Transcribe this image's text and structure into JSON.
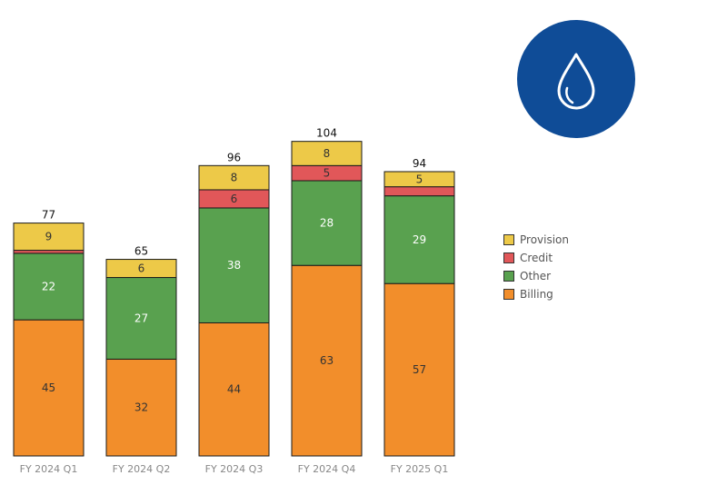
{
  "chart_data": {
    "type": "bar",
    "stacked": true,
    "categories": [
      "FY 2024 Q1",
      "FY 2024 Q2",
      "FY 2024 Q3",
      "FY 2024 Q4",
      "FY 2025 Q1"
    ],
    "series": [
      {
        "name": "Billing",
        "color": "#f28e2b",
        "values": [
          45,
          32,
          44,
          63,
          57
        ]
      },
      {
        "name": "Other",
        "color": "#59a14f",
        "values": [
          22,
          27,
          38,
          28,
          29
        ]
      },
      {
        "name": "Credit",
        "color": "#e15759",
        "values": [
          1,
          0,
          6,
          5,
          3
        ]
      },
      {
        "name": "Provision",
        "color": "#edc948",
        "values": [
          9,
          6,
          8,
          8,
          5
        ]
      }
    ],
    "totals": [
      77,
      65,
      96,
      104,
      94
    ],
    "segment_labels_shown": {
      "Billing": [
        true,
        true,
        true,
        true,
        true
      ],
      "Other": [
        true,
        true,
        true,
        true,
        true
      ],
      "Credit": [
        false,
        false,
        true,
        true,
        false
      ],
      "Provision": [
        true,
        true,
        true,
        true,
        true
      ]
    },
    "ylim": [
      0,
      104
    ],
    "grid": false,
    "legend_position": "right",
    "legend_order": [
      "Provision",
      "Credit",
      "Other",
      "Billing"
    ]
  },
  "logo": {
    "icon": "water-drop-icon",
    "background": "#0f4c97",
    "stroke": "#ffffff"
  }
}
